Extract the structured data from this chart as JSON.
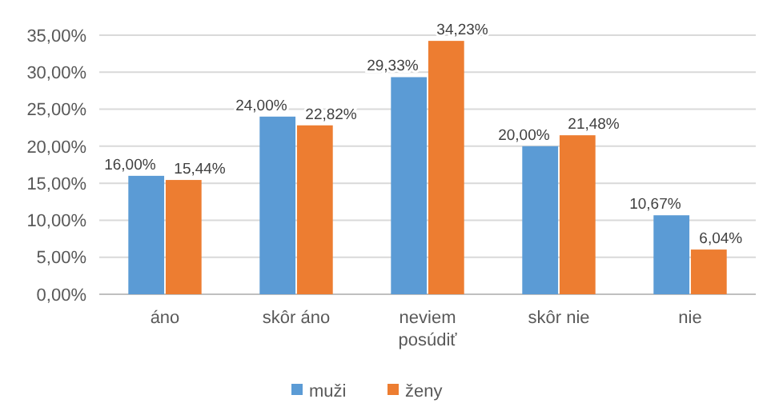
{
  "chart_data": {
    "type": "bar",
    "categories": [
      "áno",
      "skôr áno",
      "neviem posúdiť",
      "skôr nie",
      "nie"
    ],
    "series": [
      {
        "name": "muži",
        "color": "#5b9bd5",
        "values": [
          16.0,
          24.0,
          29.33,
          20.0,
          10.67
        ],
        "value_labels": [
          "16,00%",
          "24,00%",
          "29,33%",
          "20,00%",
          "10,67%"
        ]
      },
      {
        "name": "ženy",
        "color": "#ed7d31",
        "values": [
          15.44,
          22.82,
          34.23,
          21.48,
          6.04
        ],
        "value_labels": [
          "15,44%",
          "22,82%",
          "34,23%",
          "21,48%",
          "6,04%"
        ]
      }
    ],
    "ylim": [
      0,
      35
    ],
    "yticks": [
      {
        "value": 0,
        "label": "0,00%"
      },
      {
        "value": 5,
        "label": "5,00%"
      },
      {
        "value": 10,
        "label": "10,00%"
      },
      {
        "value": 15,
        "label": "15,00%"
      },
      {
        "value": 20,
        "label": "20,00%"
      },
      {
        "value": 25,
        "label": "25,00%"
      },
      {
        "value": 30,
        "label": "30,00%"
      },
      {
        "value": 35,
        "label": "35,00%"
      }
    ],
    "grid": "y",
    "legend": "bottom"
  }
}
